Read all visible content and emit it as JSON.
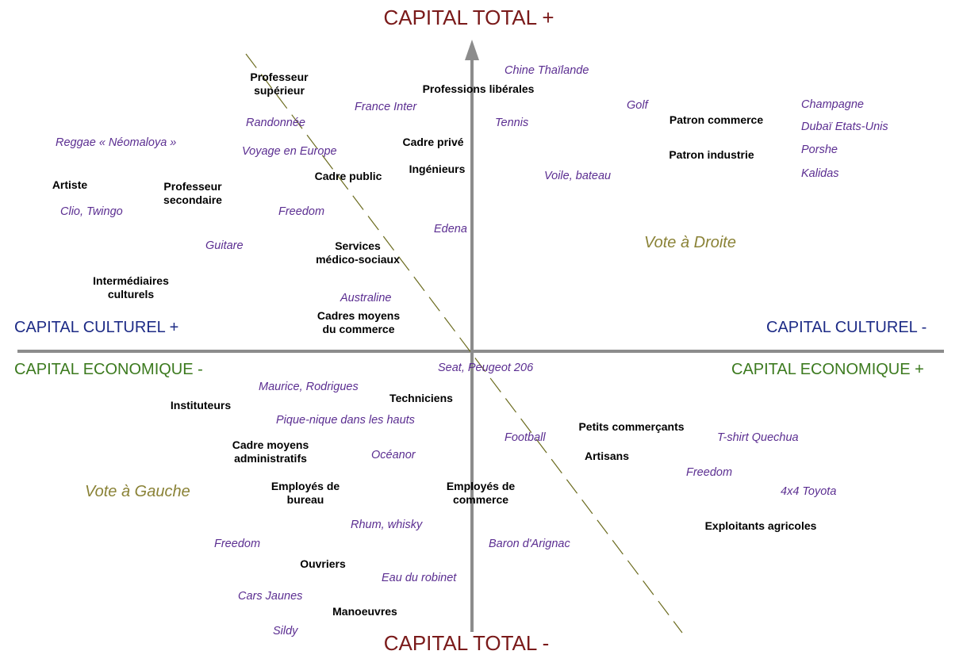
{
  "colors": {
    "axis_line": "#8c8c8c",
    "capital_total": "#7a1a1a",
    "capital_culturel": "#1d2b86",
    "capital_economique": "#3c7a1f",
    "taste_items": "#5b2e91",
    "occupations": "#000000",
    "vote_labels": "#8a8236",
    "dashed_line": "#6b6b1e"
  },
  "axes": {
    "top": "CAPITAL TOTAL +",
    "bottom": "CAPITAL TOTAL -",
    "left_culturel": "CAPITAL CULTUREL +",
    "right_culturel": "CAPITAL CULTUREL -",
    "left_economique": "CAPITAL ECONOMIQUE -",
    "right_economique": "CAPITAL ECONOMIQUE +"
  },
  "votes": {
    "droite": "Vote à Droite",
    "gauche": "Vote à Gauche"
  },
  "occupations": [
    {
      "lines": [
        "Professeur",
        "supérieur"
      ]
    },
    {
      "lines": [
        "Professions libérales"
      ]
    },
    {
      "lines": [
        "Cadre privé"
      ]
    },
    {
      "lines": [
        "Ingénieurs"
      ]
    },
    {
      "lines": [
        "Cadre public"
      ]
    },
    {
      "lines": [
        "Artiste"
      ]
    },
    {
      "lines": [
        "Professeur",
        "secondaire"
      ]
    },
    {
      "lines": [
        "Services",
        "médico-sociaux"
      ]
    },
    {
      "lines": [
        "Intermédiaires",
        "culturels"
      ]
    },
    {
      "lines": [
        "Cadres moyens",
        "du commerce"
      ]
    },
    {
      "lines": [
        "Patron commerce"
      ]
    },
    {
      "lines": [
        "Patron industrie"
      ]
    },
    {
      "lines": [
        "Instituteurs"
      ]
    },
    {
      "lines": [
        "Techniciens"
      ]
    },
    {
      "lines": [
        "Cadre moyens",
        "administratifs"
      ]
    },
    {
      "lines": [
        "Employés de",
        "bureau"
      ]
    },
    {
      "lines": [
        "Employés de",
        "commerce"
      ]
    },
    {
      "lines": [
        "Ouvriers"
      ]
    },
    {
      "lines": [
        "Manoeuvres"
      ]
    },
    {
      "lines": [
        "Petits commerçants"
      ]
    },
    {
      "lines": [
        "Artisans"
      ]
    },
    {
      "lines": [
        "Exploitants agricoles"
      ]
    }
  ],
  "tastes": [
    "Chine  Thaïlande",
    "France Inter",
    "Randonnée",
    "Reggae « Néomaloya »",
    "Voyage en Europe",
    "Tennis",
    "Golf",
    "Champagne",
    "Dubaï  Etats-Unis",
    "Porshe",
    "Kalidas",
    "Voile, bateau",
    "Clio, Twingo",
    "Freedom",
    "Edena",
    "Guitare",
    "Australine",
    "Seat, Peugeot 206",
    "Maurice, Rodrigues",
    "Pique-nique dans les hauts",
    "Football",
    "T-shirt  Quechua",
    "Océanor",
    "Freedom",
    "4x4  Toyota",
    "Rhum, whisky",
    "Baron  d'Arignac",
    "Freedom",
    "Eau du robinet",
    "Cars Jaunes",
    "Sildy"
  ]
}
